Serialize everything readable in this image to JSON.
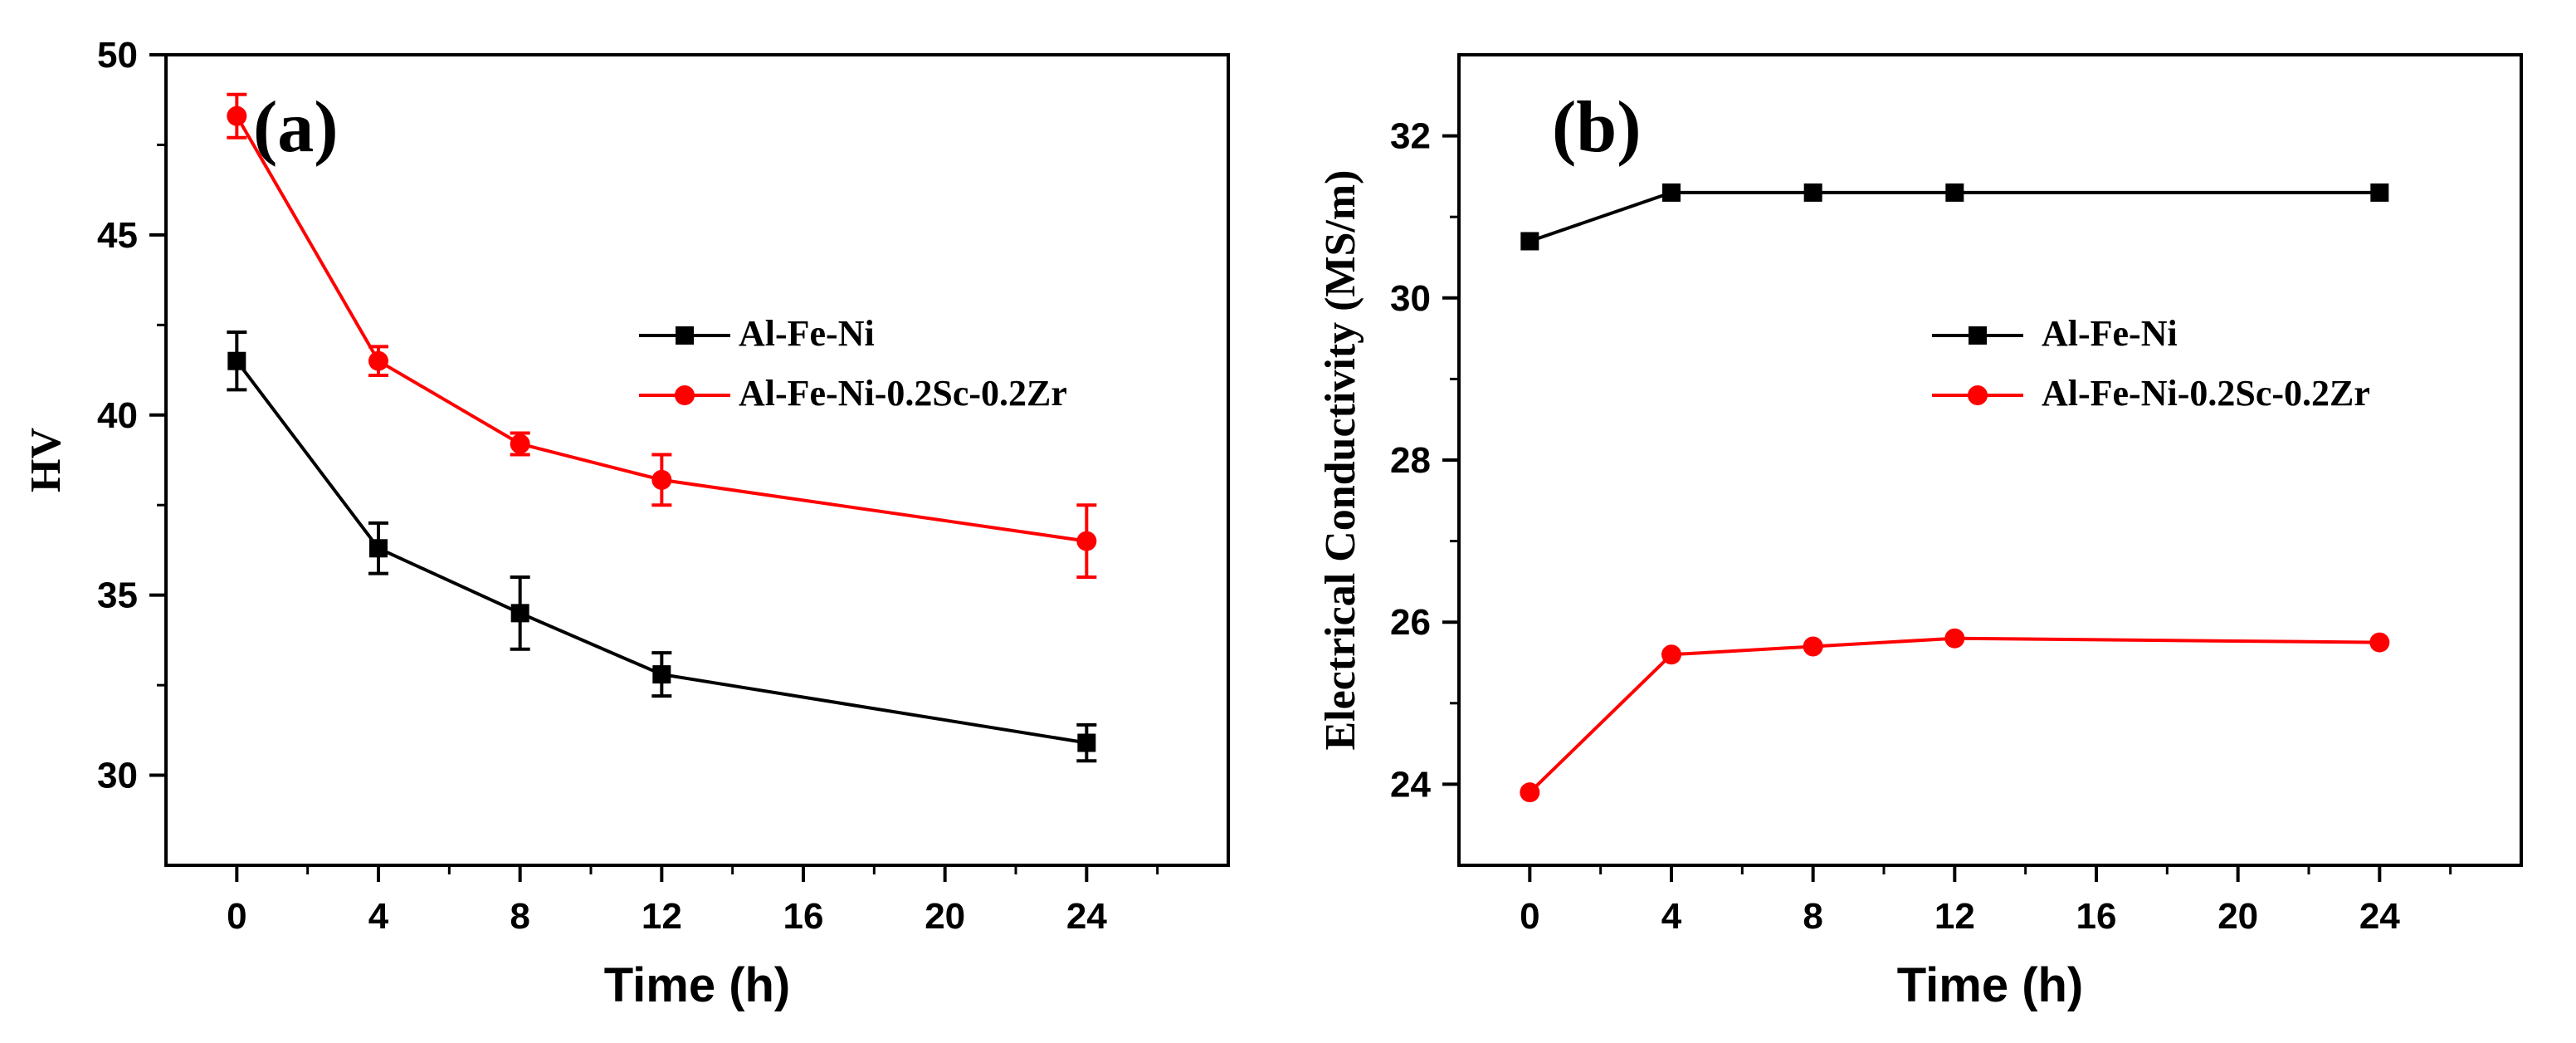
{
  "chart_data": [
    {
      "type": "line",
      "panel_label": "(a)",
      "xlabel": "Time (h)",
      "ylabel": "HV",
      "xlim": [
        -2,
        28
      ],
      "ylim": [
        27.5,
        50
      ],
      "x_ticks": [
        0,
        4,
        8,
        12,
        16,
        20,
        24
      ],
      "x_tick_labels": [
        "0",
        "4",
        "8",
        "12",
        "16",
        "20",
        "24"
      ],
      "y_ticks": [
        30,
        35,
        40,
        45,
        50
      ],
      "y_tick_labels": [
        "30",
        "35",
        "40",
        "45",
        "50"
      ],
      "grid": false,
      "legend_position": "center-right",
      "series": [
        {
          "name": "Al-Fe-Ni",
          "color": "#000000",
          "marker": "square",
          "x": [
            0,
            4,
            8,
            12,
            24
          ],
          "y": [
            41.5,
            36.3,
            34.5,
            32.8,
            30.9
          ],
          "yerr": [
            0.8,
            0.7,
            1.0,
            0.6,
            0.5
          ]
        },
        {
          "name": "Al-Fe-Ni-0.2Sc-0.2Zr",
          "color": "#ff0000",
          "marker": "circle",
          "x": [
            0,
            4,
            8,
            12,
            24
          ],
          "y": [
            48.3,
            41.5,
            39.2,
            38.2,
            36.5
          ],
          "yerr": [
            0.6,
            0.4,
            0.3,
            0.7,
            1.0
          ]
        }
      ]
    },
    {
      "type": "line",
      "panel_label": "(b)",
      "xlabel": "Time (h)",
      "ylabel": "Electrical Conductivity (MS/m)",
      "xlim": [
        -2,
        28
      ],
      "ylim": [
        23,
        33
      ],
      "x_ticks": [
        0,
        4,
        8,
        12,
        16,
        20,
        24
      ],
      "x_tick_labels": [
        "0",
        "4",
        "8",
        "12",
        "16",
        "20",
        "24"
      ],
      "y_ticks": [
        24,
        26,
        28,
        30,
        32
      ],
      "y_tick_labels": [
        "24",
        "26",
        "28",
        "30",
        "32"
      ],
      "grid": false,
      "legend_position": "center-right",
      "series": [
        {
          "name": "Al-Fe-Ni",
          "color": "#000000",
          "marker": "square",
          "x": [
            0,
            4,
            8,
            12,
            24
          ],
          "y": [
            30.7,
            31.3,
            31.3,
            31.3,
            31.3
          ]
        },
        {
          "name": "Al-Fe-Ni-0.2Sc-0.2Zr",
          "color": "#ff0000",
          "marker": "circle",
          "x": [
            0,
            4,
            8,
            12,
            24
          ],
          "y": [
            23.9,
            25.6,
            25.7,
            25.8,
            25.75
          ]
        }
      ]
    }
  ]
}
